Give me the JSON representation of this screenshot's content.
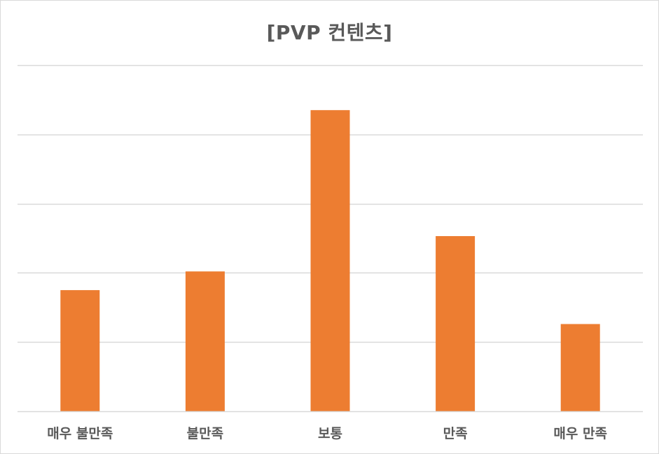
{
  "chart_data": {
    "type": "bar",
    "title": "[PVP 컨텐츠]",
    "categories": [
      "매우 불만족",
      "불만족",
      "보통",
      "만족",
      "매우 만족"
    ],
    "values": [
      17.5,
      20.2,
      43.5,
      25.3,
      12.6
    ],
    "ylim": [
      0,
      50
    ],
    "grid": true,
    "legend": "none",
    "bar_color": "#ed7d31",
    "gridline_color": "#d9d9d9"
  }
}
